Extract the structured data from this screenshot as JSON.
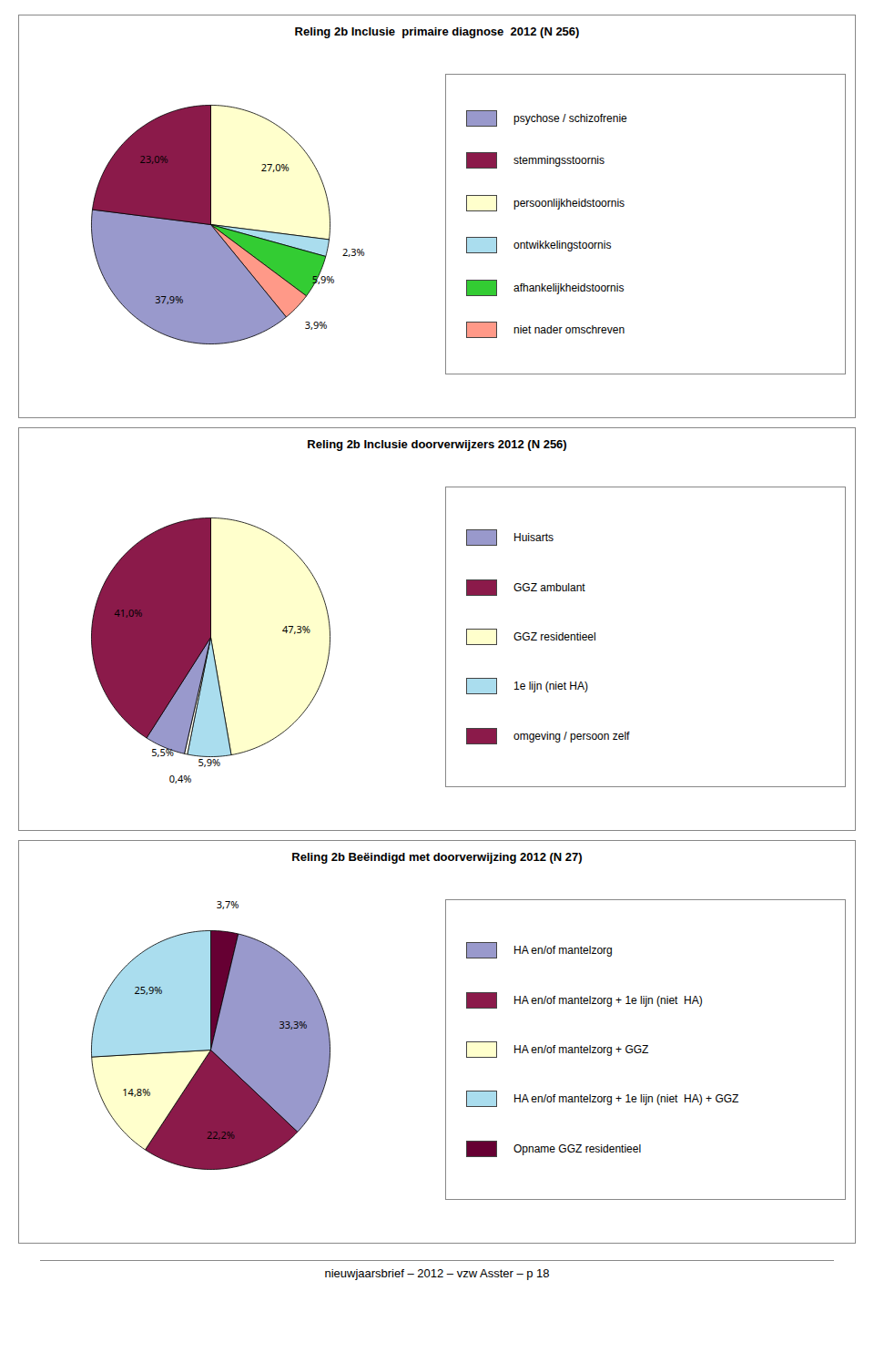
{
  "chart_data": [
    {
      "type": "pie",
      "title": "Reling 2b Inclusie  primaire diagnose  2012 (N 256)",
      "values": [
        27.0,
        2.3,
        5.9,
        3.9,
        37.9,
        23.0
      ],
      "value_labels": [
        "27,0%",
        "2,3%",
        "5,9%",
        "3,9%",
        "37,9%",
        "23,0%"
      ],
      "colors": [
        "#ffffcc",
        "#aaddee",
        "#33cc33",
        "#ff9988",
        "#9999cc",
        "#8b1a4a"
      ],
      "data_labels": true,
      "legend": "right",
      "series": [
        {
          "name": "psychose / schizofrenie",
          "color": "#9999cc"
        },
        {
          "name": "stemmingsstoornis",
          "color": "#8b1a4a"
        },
        {
          "name": "persoonlijkheidstoornis",
          "color": "#ffffcc"
        },
        {
          "name": "ontwikkelingstoornis",
          "color": "#aaddee"
        },
        {
          "name": "afhankelijkheidstoornis",
          "color": "#33cc33"
        },
        {
          "name": "niet nader omschreven",
          "color": "#ff9988"
        }
      ]
    },
    {
      "type": "pie",
      "title": "Reling 2b Inclusie doorverwijzers 2012 (N 256)",
      "values": [
        47.3,
        5.9,
        0.4,
        5.5,
        41.0
      ],
      "value_labels": [
        "47,3%",
        "5,9%",
        "0,4%",
        "5,5%",
        "41,0%"
      ],
      "colors": [
        "#ffffcc",
        "#aaddee",
        "#ffffee",
        "#9999cc",
        "#8b1a4a"
      ],
      "data_labels": true,
      "legend": "right",
      "series": [
        {
          "name": "Huisarts",
          "color": "#9999cc"
        },
        {
          "name": "GGZ ambulant",
          "color": "#8b1a4a"
        },
        {
          "name": "GGZ residentieel",
          "color": "#ffffcc"
        },
        {
          "name": "1e lijn (niet HA)",
          "color": "#aaddee"
        },
        {
          "name": "omgeving / persoon zelf",
          "color": "#8b1a4a"
        }
      ]
    },
    {
      "type": "pie",
      "title": "Reling 2b Beëindigd met doorverwijzing 2012 (N 27)",
      "values": [
        3.7,
        33.3,
        22.2,
        14.8,
        25.9
      ],
      "value_labels": [
        "3,7%",
        "33,3%",
        "22,2%",
        "14,8%",
        "25,9%"
      ],
      "colors": [
        "#660033",
        "#9999cc",
        "#8b1a4a",
        "#ffffcc",
        "#aaddee"
      ],
      "data_labels": true,
      "legend": "right",
      "series": [
        {
          "name": "HA en/of mantelzorg",
          "color": "#9999cc"
        },
        {
          "name": "HA en/of mantelzorg + 1e lijn (niet  HA)",
          "color": "#8b1a4a"
        },
        {
          "name": "HA en/of mantelzorg + GGZ",
          "color": "#ffffcc"
        },
        {
          "name": "HA en/of mantelzorg + 1e lijn (niet  HA) + GGZ",
          "color": "#aaddee"
        },
        {
          "name": "Opname GGZ residentieel",
          "color": "#660033"
        }
      ]
    }
  ],
  "footer": "nieuwjaarsbrief – 2012 – vzw Asster – p 18"
}
